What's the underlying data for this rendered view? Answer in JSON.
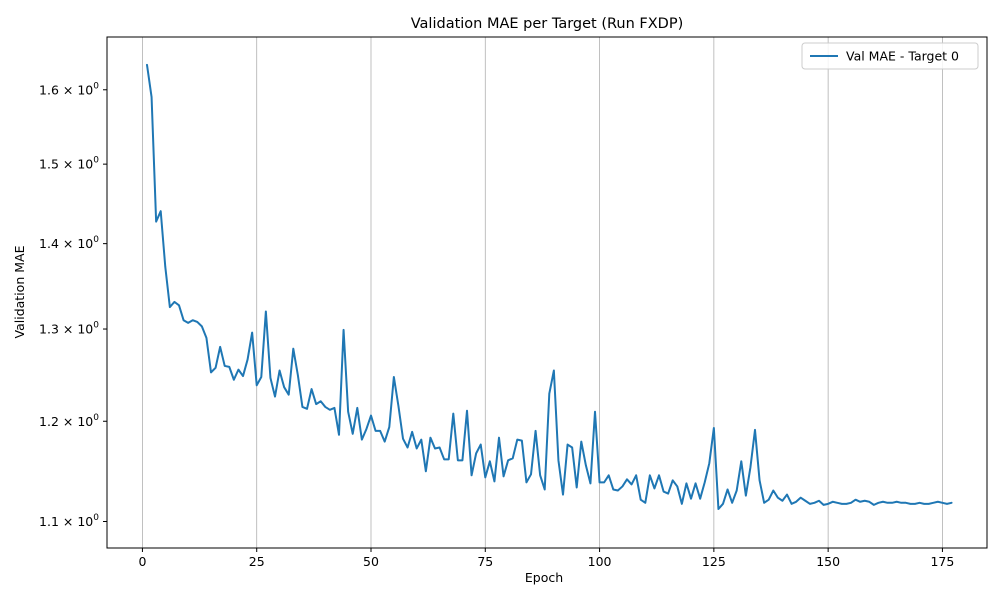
{
  "chart_data": {
    "type": "line",
    "title": "Validation MAE per Target (Run FXDP)",
    "xlabel": "Epoch",
    "ylabel": "Validation MAE",
    "xlim": [
      -7.75,
      184.75
    ],
    "ylim": [
      1.075,
      1.675
    ],
    "yscale": "log",
    "grid": "x-only",
    "legend_position": "top-right",
    "x_ticks": [
      0,
      25,
      50,
      75,
      100,
      125,
      150,
      175
    ],
    "x_tick_labels": [
      "0",
      "25",
      "50",
      "75",
      "100",
      "125",
      "150",
      "175"
    ],
    "y_ticks": [
      1.1,
      1.2,
      1.3,
      1.4,
      1.5,
      1.6
    ],
    "y_tick_labels": [
      {
        "mant": "1.1",
        "exp": "0"
      },
      {
        "mant": "1.2",
        "exp": "0"
      },
      {
        "mant": "1.3",
        "exp": "0"
      },
      {
        "mant": "1.4",
        "exp": "0"
      },
      {
        "mant": "1.5",
        "exp": "0"
      },
      {
        "mant": "1.6",
        "exp": "0"
      }
    ],
    "series": [
      {
        "name": "Val MAE - Target 0",
        "color": "#1f77b4",
        "x_start": 1,
        "values": [
          1.635,
          1.59,
          1.427,
          1.44,
          1.372,
          1.325,
          1.331,
          1.327,
          1.31,
          1.307,
          1.31,
          1.308,
          1.303,
          1.29,
          1.252,
          1.257,
          1.28,
          1.259,
          1.258,
          1.244,
          1.255,
          1.248,
          1.266,
          1.296,
          1.238,
          1.247,
          1.32,
          1.246,
          1.226,
          1.254,
          1.236,
          1.228,
          1.278,
          1.249,
          1.215,
          1.213,
          1.234,
          1.218,
          1.221,
          1.215,
          1.212,
          1.214,
          1.186,
          1.299,
          1.21,
          1.187,
          1.214,
          1.181,
          1.192,
          1.206,
          1.19,
          1.19,
          1.179,
          1.194,
          1.247,
          1.216,
          1.182,
          1.173,
          1.189,
          1.172,
          1.181,
          1.149,
          1.183,
          1.172,
          1.173,
          1.161,
          1.161,
          1.208,
          1.16,
          1.16,
          1.211,
          1.145,
          1.167,
          1.176,
          1.143,
          1.159,
          1.139,
          1.183,
          1.144,
          1.16,
          1.162,
          1.181,
          1.18,
          1.138,
          1.146,
          1.19,
          1.145,
          1.131,
          1.229,
          1.254,
          1.16,
          1.126,
          1.176,
          1.173,
          1.133,
          1.179,
          1.155,
          1.137,
          1.21,
          1.138,
          1.138,
          1.145,
          1.131,
          1.13,
          1.134,
          1.141,
          1.136,
          1.145,
          1.121,
          1.118,
          1.145,
          1.132,
          1.145,
          1.129,
          1.127,
          1.14,
          1.134,
          1.117,
          1.137,
          1.122,
          1.137,
          1.122,
          1.138,
          1.157,
          1.193,
          1.112,
          1.117,
          1.131,
          1.118,
          1.13,
          1.159,
          1.125,
          1.153,
          1.191,
          1.14,
          1.118,
          1.121,
          1.13,
          1.123,
          1.12,
          1.126,
          1.117,
          1.119,
          1.123,
          1.12,
          1.117,
          1.118,
          1.12,
          1.116,
          1.117,
          1.119,
          1.118,
          1.117,
          1.117,
          1.118,
          1.121,
          1.119,
          1.12,
          1.119,
          1.116,
          1.118,
          1.119,
          1.118,
          1.118,
          1.119,
          1.118,
          1.118,
          1.117,
          1.117,
          1.118,
          1.117,
          1.117,
          1.118,
          1.119,
          1.118,
          1.117,
          1.118
        ]
      }
    ]
  }
}
